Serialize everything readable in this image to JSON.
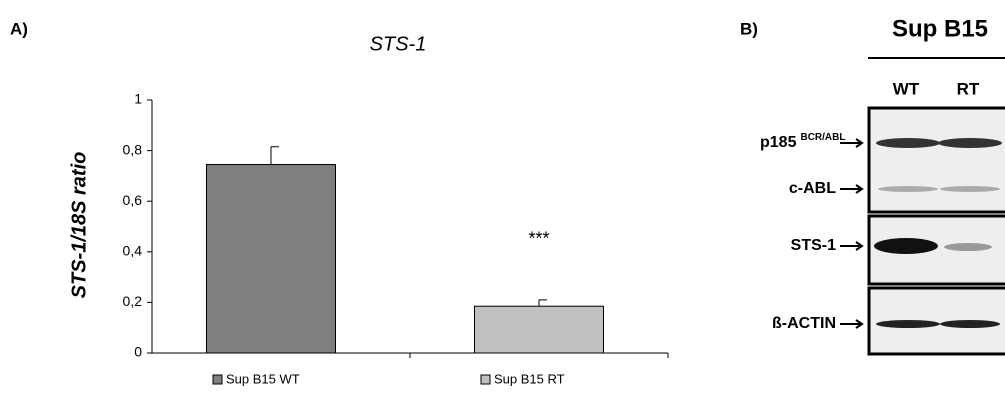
{
  "chart_data": {
    "type": "bar",
    "panel": "A)",
    "title": "STS-1",
    "ylabel": "STS-1/18S ratio",
    "categories": [
      "Sup B15 WT",
      "Sup B15 RT"
    ],
    "values": [
      0.745,
      0.185
    ],
    "errors": [
      0.07,
      0.025
    ],
    "colors": [
      "#7f7f7f",
      "#c0c0c0"
    ],
    "annotation": "***",
    "ylim": [
      0,
      1
    ],
    "yticks": [
      0,
      {
        "value": 0.2,
        "label": "0,2"
      },
      {
        "value": 0.4,
        "label": "0,4"
      },
      {
        "value": 0.6,
        "label": "0,6"
      },
      {
        "value": 0.8,
        "label": "0,8"
      },
      1
    ],
    "grid": false
  },
  "blot": {
    "panel": "B)",
    "title": "Sup B15",
    "lanes": [
      "WT",
      "RT"
    ],
    "markers": [
      {
        "label": "p185",
        "superscript": "BCR/ABL"
      },
      {
        "label": "c-ABL"
      },
      {
        "label": "STS-1"
      },
      {
        "label": "ß-ACTIN"
      }
    ]
  }
}
